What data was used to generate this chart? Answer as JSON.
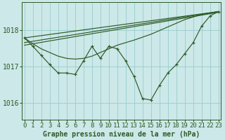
{
  "background_color": "#cce8e8",
  "grid_color": "#99cccc",
  "line_color": "#2d5a27",
  "title": "Graphe pression niveau de la mer (hPa)",
  "xlabel_fontsize": 6.5,
  "ylabel_fontsize": 7,
  "title_fontsize": 7,
  "ylim": [
    1015.55,
    1018.75
  ],
  "yticks": [
    1016,
    1017,
    1018
  ],
  "xticks": [
    0,
    1,
    2,
    3,
    4,
    5,
    6,
    7,
    8,
    9,
    10,
    11,
    12,
    13,
    14,
    15,
    16,
    17,
    18,
    19,
    20,
    21,
    22,
    23
  ],
  "line_main": [
    1017.78,
    1017.55,
    1017.3,
    1017.05,
    1016.82,
    1016.82,
    1016.78,
    1017.15,
    1017.55,
    1017.22,
    1017.55,
    1017.48,
    1017.15,
    1016.72,
    1016.12,
    1016.08,
    1016.48,
    1016.82,
    1017.05,
    1017.35,
    1017.65,
    1018.1,
    1018.38,
    1018.5
  ],
  "line_smooth": [
    1017.78,
    1017.62,
    1017.48,
    1017.38,
    1017.28,
    1017.22,
    1017.2,
    1017.22,
    1017.28,
    1017.38,
    1017.48,
    1017.58,
    1017.65,
    1017.72,
    1017.8,
    1017.88,
    1017.98,
    1018.08,
    1018.18,
    1018.28,
    1018.35,
    1018.42,
    1018.46,
    1018.5
  ],
  "line_trend1": [
    [
      0,
      1017.78
    ],
    [
      23,
      1018.5
    ]
  ],
  "line_trend2": [
    [
      0,
      1017.65
    ],
    [
      23,
      1018.5
    ]
  ],
  "line_trend3": [
    [
      0,
      1017.58
    ],
    [
      23,
      1018.48
    ]
  ]
}
